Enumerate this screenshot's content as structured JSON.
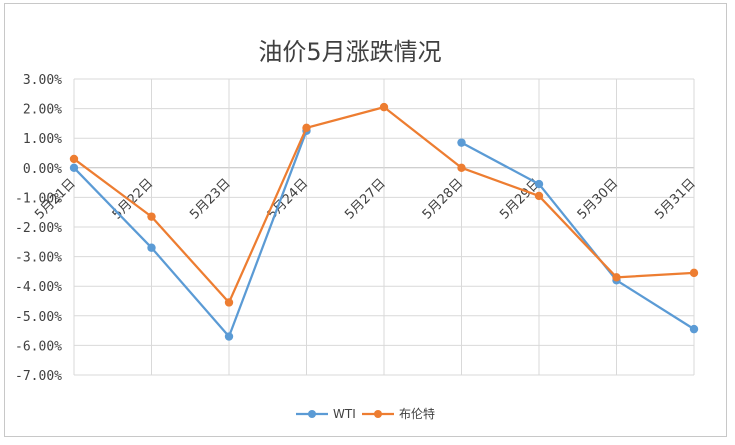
{
  "chart_data": {
    "type": "line",
    "title": "油价5月涨跌情况",
    "categories": [
      "5月21日",
      "5月22日",
      "5月23日",
      "5月24日",
      "5月27日",
      "5月28日",
      "5月29日",
      "5月30日",
      "5月31日"
    ],
    "series": [
      {
        "name": "WTI",
        "color": "#5B9BD5",
        "values": [
          0.0,
          -2.7,
          -5.7,
          1.25,
          null,
          0.85,
          -0.55,
          -3.8,
          -5.45
        ]
      },
      {
        "name": "布伦特",
        "color": "#ED7D31",
        "values": [
          0.3,
          -1.65,
          -4.55,
          1.35,
          2.05,
          0.0,
          -0.95,
          -3.7,
          -3.55
        ]
      }
    ],
    "ylim": [
      -7.0,
      3.0
    ],
    "yticks": [
      "3.00%",
      "2.00%",
      "1.00%",
      "0.00%",
      "-1.00%",
      "-2.00%",
      "-3.00%",
      "-4.00%",
      "-5.00%",
      "-6.00%",
      "-7.00%"
    ],
    "grid": true,
    "legend": "bottom"
  }
}
